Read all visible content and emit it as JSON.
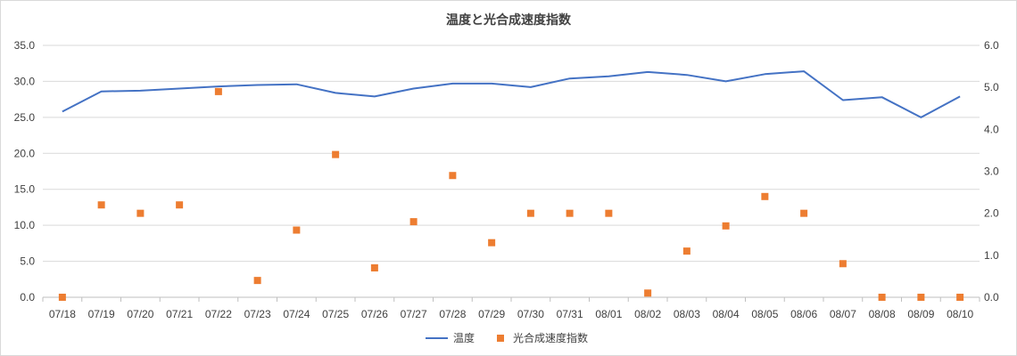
{
  "chart_data": {
    "type": "line",
    "title": "温度と光合成速度指数",
    "categories": [
      "07/18",
      "07/19",
      "07/20",
      "07/21",
      "07/22",
      "07/23",
      "07/24",
      "07/25",
      "07/26",
      "07/27",
      "07/28",
      "07/29",
      "07/30",
      "07/31",
      "08/01",
      "08/02",
      "08/03",
      "08/04",
      "08/05",
      "08/06",
      "08/07",
      "08/08",
      "08/09",
      "08/10"
    ],
    "series": [
      {
        "name": "温度",
        "kind": "line",
        "axis": "left",
        "color": "#4472C4",
        "values": [
          25.8,
          28.6,
          28.7,
          29.0,
          29.3,
          29.5,
          29.6,
          28.4,
          27.9,
          29.0,
          29.7,
          29.7,
          29.2,
          30.4,
          30.7,
          31.3,
          30.9,
          30.0,
          31.0,
          31.4,
          27.4,
          27.8,
          25.0,
          27.9
        ]
      },
      {
        "name": "光合成速度指数",
        "kind": "scatter",
        "axis": "right",
        "color": "#ED7D31",
        "values": [
          0.0,
          2.2,
          2.0,
          2.2,
          4.9,
          0.4,
          1.6,
          3.4,
          0.7,
          1.8,
          2.9,
          1.3,
          2.0,
          2.0,
          2.0,
          0.1,
          1.1,
          1.7,
          2.4,
          2.0,
          0.8,
          0.0,
          0.0,
          0.0
        ]
      }
    ],
    "y_left": {
      "min": 0,
      "max": 35,
      "step": 5,
      "decimals": 1
    },
    "y_right": {
      "min": 0,
      "max": 6,
      "step": 1,
      "decimals": 1
    },
    "grid": true,
    "legend_position": "bottom"
  }
}
